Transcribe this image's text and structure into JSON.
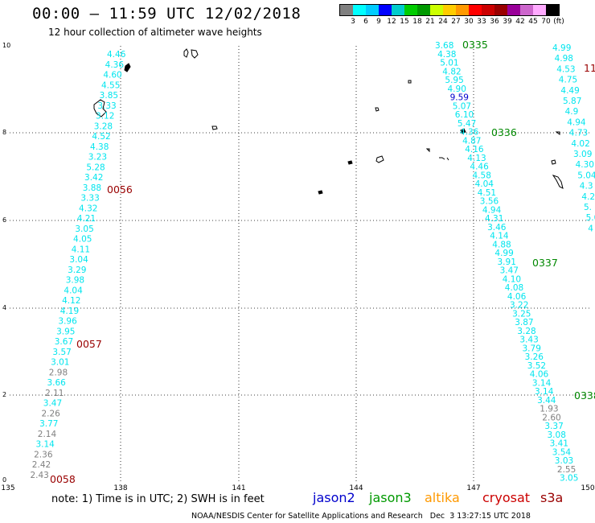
{
  "title": "00:00 – 11:59 UTC 12/02/2018",
  "subtitle": "12 hour collection of altimeter wave heights",
  "legend": {
    "colors": [
      "#808080",
      "#00ffff",
      "#00ccff",
      "#0000ff",
      "#00cccc",
      "#00cc00",
      "#009900",
      "#ccff00",
      "#ffcc00",
      "#ff9900",
      "#ff0000",
      "#cc0000",
      "#990000",
      "#990099",
      "#cc66cc",
      "#ffaaff",
      "#000000"
    ],
    "labels": [
      "3",
      "6",
      "9",
      "12",
      "15",
      "18",
      "21",
      "24",
      "27",
      "30",
      "33",
      "36",
      "39",
      "42",
      "45",
      "70",
      "(ft)"
    ]
  },
  "axes": {
    "x_ticks": [
      "135",
      "138",
      "141",
      "144",
      "147",
      "150"
    ],
    "y_ticks": [
      "0",
      "2",
      "4",
      "6",
      "8",
      "10"
    ]
  },
  "track1": {
    "color": "#00e5ee",
    "low_color": "#808080",
    "times": [
      "0056",
      "0057",
      "0058"
    ],
    "values": [
      "4.46",
      "4.36",
      "4.60",
      "4.55",
      "3.85",
      "3.33",
      "3.12",
      "3.28",
      "4.52",
      "4.38",
      "3.23",
      "5.28",
      "3.42",
      "3.88",
      "3.33",
      "4.32",
      "4.21",
      "3.05",
      "4.05",
      "4.11",
      "3.04",
      "3.29",
      "3.98",
      "4.04",
      "4.12",
      "4.19",
      "3.96",
      "3.95",
      "3.67",
      "3.57",
      "3.01",
      "2.98",
      "3.66",
      "2.11",
      "3.47",
      "2.26",
      "3.77",
      "2.14",
      "3.14",
      "2.36",
      "2.42",
      "2.43"
    ]
  },
  "track2": {
    "color": "#00e5ee",
    "low_color": "#808080",
    "mid_color": "#0000cc",
    "times": [
      "0335",
      "0336",
      "0337"
    ],
    "values": [
      "3.68",
      "4.38",
      "5.01",
      "4.82",
      "5.95",
      "4.90",
      "9.59",
      "5.07",
      "6.10",
      "5.47",
      "4.36",
      "4.87",
      "4.16",
      "4.13",
      "4.46",
      "4.58",
      "4.04",
      "4.51",
      "3.56",
      "4.94",
      "4.31",
      "3.46",
      "4.14",
      "4.88",
      "4.99",
      "3.91",
      "3.47",
      "4.10",
      "4.08",
      "4.06",
      "3.22",
      "3.25",
      "3.87",
      "3.28",
      "3.43",
      "3.79",
      "3.26",
      "3.52",
      "4.06",
      "3.14",
      "3.14",
      "3.44",
      "1.93",
      "2.60",
      "3.37",
      "3.08",
      "3.41",
      "3.54",
      "3.03",
      "2.55",
      "3.05"
    ]
  },
  "track3": {
    "color": "#00e5ee",
    "times": [
      "0338",
      "11"
    ],
    "values": [
      "4.99",
      "4.98",
      "4.53",
      "4.75",
      "4.49",
      "5.87",
      "4.9",
      "4.94",
      "4.73",
      "4.02",
      "3.09",
      "4.30",
      "5.04",
      "4.3",
      "4.2",
      "5.",
      "5.0",
      "4"
    ]
  },
  "note": "note:  1) Time is in UTC;  2) SWH is in feet",
  "satellites": [
    {
      "name": "jason2",
      "color": "#0000cc"
    },
    {
      "name": "jason3",
      "color": "#009900"
    },
    {
      "name": "altika",
      "color": "#ff9900"
    },
    {
      "name": "cryosat",
      "color": "#cc0000"
    },
    {
      "name": "s3a",
      "color": "#990000"
    }
  ],
  "footer": "NOAA/NESDIS Center for Satellite Applications and Research   Dec  3 13:27:15 UTC 2018"
}
